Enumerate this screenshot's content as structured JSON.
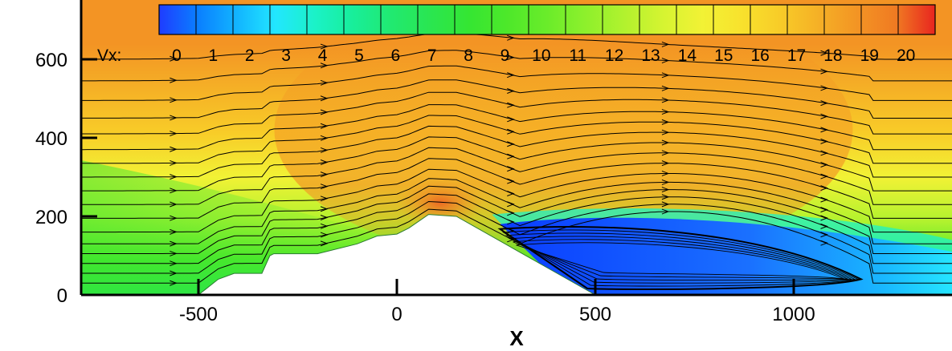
{
  "chart_data": {
    "type": "contour",
    "xlabel": "X",
    "ylabel": "",
    "xlim": [
      -800,
      1400
    ],
    "ylim": [
      0,
      760
    ],
    "xticks": [
      -500,
      0,
      500,
      1000
    ],
    "yticks": [
      0,
      200,
      400,
      600
    ],
    "colorbar": {
      "variable_label": "Vx:",
      "levels": [
        0,
        1,
        2,
        3,
        4,
        5,
        6,
        7,
        8,
        9,
        10,
        11,
        12,
        13,
        14,
        15,
        16,
        17,
        18,
        19,
        20
      ],
      "colors": [
        "#1f3cff",
        "#0a7fff",
        "#12b4ff",
        "#22e6ff",
        "#1bf2c8",
        "#18ee9a",
        "#21e970",
        "#2ae650",
        "#35e632",
        "#4ee82a",
        "#6aec2a",
        "#8ef02c",
        "#b2f22e",
        "#d6f431",
        "#f2f235",
        "#f8e22d",
        "#f8cc28",
        "#f5b026",
        "#f39424",
        "#f07a22",
        "#e8251f"
      ]
    },
    "terrain_profile": {
      "x": [
        -500,
        -450,
        -410,
        -340,
        -320,
        -310,
        -200,
        -100,
        -50,
        0,
        30,
        80,
        150,
        500
      ],
      "y": [
        0,
        40,
        55,
        55,
        100,
        105,
        105,
        130,
        150,
        155,
        170,
        205,
        200,
        0
      ]
    },
    "separation_bubble": {
      "x_start": 260,
      "x_end": 1190,
      "y_top": 180,
      "y_bottom": 5
    },
    "streamlines_y0": [
      30,
      55,
      80,
      105,
      130,
      160,
      195,
      230,
      265,
      300,
      335,
      370,
      410,
      450,
      495,
      545,
      600
    ]
  }
}
